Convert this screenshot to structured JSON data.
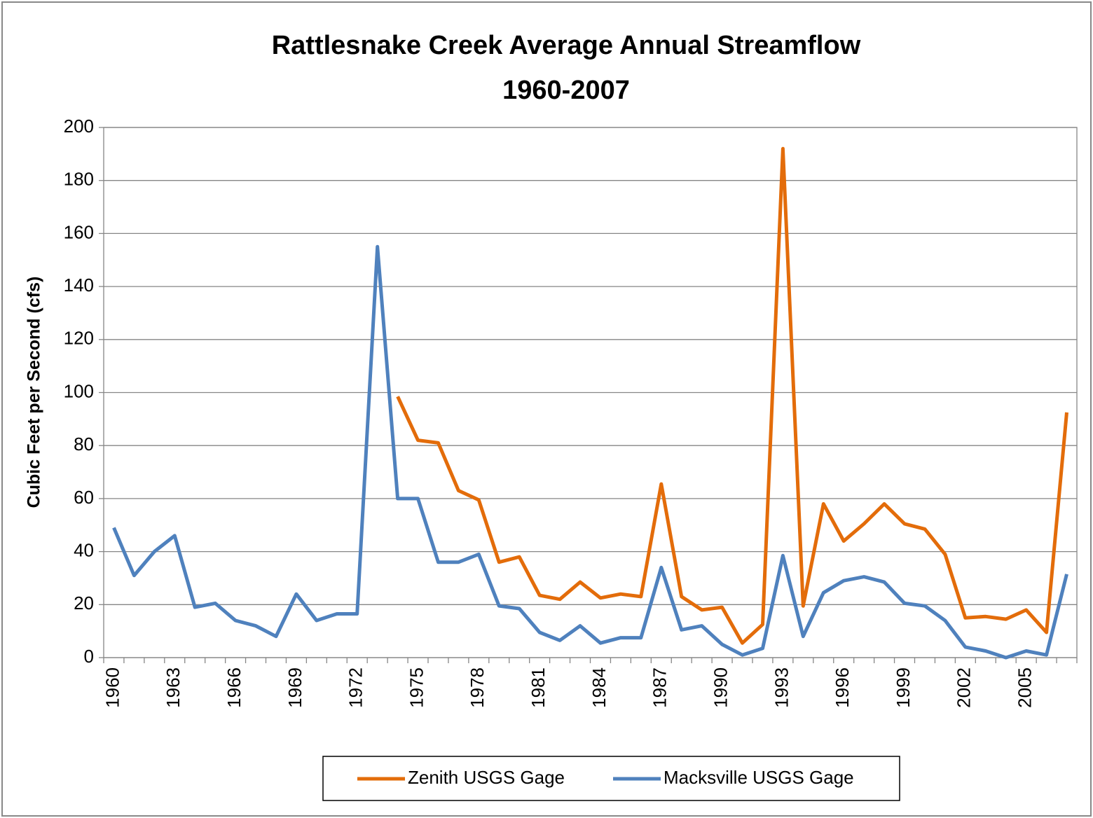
{
  "chart_data": {
    "type": "line",
    "title": "Rattlesnake Creek Average Annual Streamflow",
    "subtitle": "1960-2007",
    "y_label": "Cubic Feet per Second (cfs)",
    "categories": [
      "1960",
      null,
      null,
      "1963",
      null,
      null,
      "1966",
      null,
      null,
      "1969",
      null,
      null,
      "1972",
      null,
      null,
      "1975",
      null,
      null,
      "1978",
      null,
      null,
      "1981",
      null,
      null,
      "1984",
      null,
      null,
      "1987",
      null,
      null,
      "1990",
      null,
      null,
      "1993",
      null,
      null,
      "1996",
      null,
      null,
      "1999",
      null,
      null,
      "2002",
      null,
      null,
      "2005",
      null,
      null
    ],
    "series": [
      {
        "name": "Zenith USGS Gage",
        "color": "#e36c0a",
        "values": [
          null,
          null,
          null,
          null,
          null,
          null,
          null,
          null,
          null,
          null,
          null,
          null,
          null,
          null,
          98.5,
          82,
          81,
          63,
          59.5,
          36,
          38,
          23.5,
          22,
          28.5,
          22.5,
          24,
          23,
          65.5,
          23,
          18,
          19,
          5.5,
          12.5,
          192,
          19.5,
          58,
          44,
          50.5,
          58,
          50.5,
          48.5,
          39,
          15,
          15.5,
          14.5,
          18,
          9.5,
          92.5
        ]
      },
      {
        "name": "Macksville USGS Gage",
        "color": "#4f81bd",
        "values": [
          49,
          31,
          40,
          46,
          19,
          20.5,
          14,
          12,
          8,
          24,
          14,
          16.5,
          16.5,
          155,
          60,
          60,
          36,
          36,
          39,
          19.5,
          18.5,
          9.5,
          6.5,
          12,
          5.5,
          7.5,
          7.5,
          34,
          10.5,
          12,
          5,
          1,
          3.5,
          38.5,
          8,
          24.5,
          29,
          30.5,
          28.5,
          20.5,
          19.5,
          14,
          4,
          2.5,
          0,
          2.5,
          1,
          31.5
        ]
      }
    ],
    "ylim": [
      0,
      200
    ],
    "yticks": [
      0,
      20,
      40,
      60,
      80,
      100,
      120,
      140,
      160,
      180,
      200
    ],
    "grid": true,
    "legend": "bottom"
  }
}
